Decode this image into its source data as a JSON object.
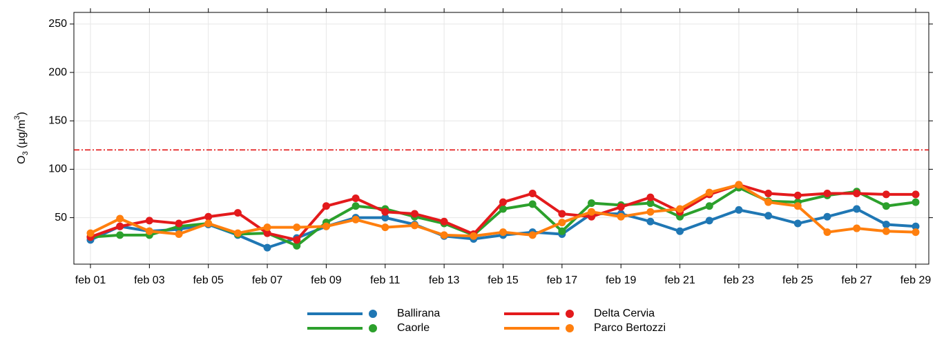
{
  "chart_data": {
    "type": "line",
    "ylabel": {
      "base": "O",
      "sub": "3",
      "mid": " (µg/m",
      "sup": "3",
      "end": ")"
    },
    "categories": [
      "feb 01",
      null,
      "feb 03",
      null,
      "feb 05",
      null,
      "feb 07",
      null,
      "feb 09",
      null,
      "feb 11",
      null,
      "feb 13",
      null,
      "feb 15",
      null,
      "feb 17",
      null,
      "feb 19",
      null,
      "feb 21",
      null,
      "feb 23",
      null,
      "feb 25",
      null,
      "feb 27",
      null,
      "feb 29"
    ],
    "series": [
      {
        "name": "Ballirana",
        "color": "#1f77b4",
        "values": [
          27,
          41,
          36,
          38,
          43,
          32,
          19,
          29,
          41,
          50,
          50,
          43,
          31,
          28,
          32,
          35,
          33,
          54,
          54,
          46,
          36,
          47,
          58,
          52,
          44,
          51,
          59,
          43,
          41
        ]
      },
      {
        "name": "Caorle",
        "color": "#2ca02c",
        "values": [
          30,
          32,
          32,
          41,
          44,
          33,
          34,
          21,
          45,
          62,
          59,
          51,
          44,
          32,
          59,
          64,
          36,
          65,
          63,
          65,
          51,
          62,
          81,
          67,
          66,
          73,
          77,
          62,
          66
        ]
      },
      {
        "name": "Delta Cervia",
        "color": "#e31a1c",
        "values": [
          30,
          41,
          47,
          44,
          51,
          55,
          34,
          27,
          62,
          70,
          56,
          54,
          46,
          33,
          66,
          75,
          54,
          51,
          61,
          71,
          56,
          74,
          84,
          75,
          73,
          75,
          75,
          74,
          74
        ]
      },
      {
        "name": "Parco Bertozzi",
        "color": "#ff7f0e",
        "values": [
          34,
          49,
          36,
          33,
          44,
          34,
          40,
          40,
          41,
          48,
          40,
          42,
          32,
          31,
          35,
          32,
          45,
          56,
          51,
          56,
          59,
          76,
          84,
          66,
          62,
          35,
          39,
          36,
          35
        ]
      }
    ],
    "reference_line": {
      "value": 120,
      "color": "#e00000"
    },
    "ylim": [
      2,
      262
    ],
    "yticks": [
      50,
      100,
      150,
      200,
      250
    ],
    "grid": true
  }
}
